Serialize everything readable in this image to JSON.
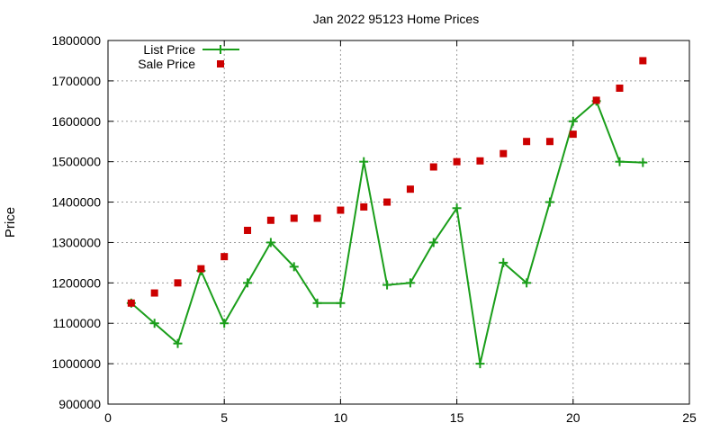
{
  "chart_data": {
    "type": "line",
    "title": "Jan 2022 95123 Home Prices",
    "xlabel": "",
    "ylabel": "Price",
    "xlim": [
      0,
      25
    ],
    "ylim": [
      900000,
      1800000
    ],
    "x_ticks": [
      0,
      5,
      10,
      15,
      20,
      25
    ],
    "y_ticks": [
      900000,
      1000000,
      1100000,
      1200000,
      1300000,
      1400000,
      1500000,
      1600000,
      1700000,
      1800000
    ],
    "grid": true,
    "legend_position": "top-left",
    "series": [
      {
        "name": "List Price",
        "style": "linespoints",
        "marker": "plus",
        "color": "#1a9e1a",
        "x": [
          1,
          2,
          3,
          4,
          5,
          6,
          7,
          8,
          9,
          10,
          11,
          12,
          13,
          14,
          15,
          16,
          17,
          18,
          19,
          20,
          21,
          22,
          23
        ],
        "values": [
          1150000,
          1100000,
          1050000,
          1230000,
          1100000,
          1200000,
          1300000,
          1240000,
          1150000,
          1150000,
          1500000,
          1195000,
          1200000,
          1300000,
          1385000,
          1000000,
          1250000,
          1200000,
          1400000,
          1600000,
          1650000,
          1500000,
          1498000
        ]
      },
      {
        "name": "Sale Price",
        "style": "points",
        "marker": "square",
        "color": "#cc0000",
        "x": [
          1,
          2,
          3,
          4,
          5,
          6,
          7,
          8,
          9,
          10,
          11,
          12,
          13,
          14,
          15,
          16,
          17,
          18,
          19,
          20,
          21,
          22,
          23
        ],
        "values": [
          1150000,
          1175000,
          1200000,
          1235000,
          1265000,
          1330000,
          1355000,
          1360000,
          1360000,
          1380000,
          1388000,
          1400000,
          1432000,
          1487000,
          1500000,
          1502000,
          1520000,
          1550000,
          1550000,
          1568000,
          1652000,
          1682000,
          1750000
        ]
      }
    ]
  }
}
